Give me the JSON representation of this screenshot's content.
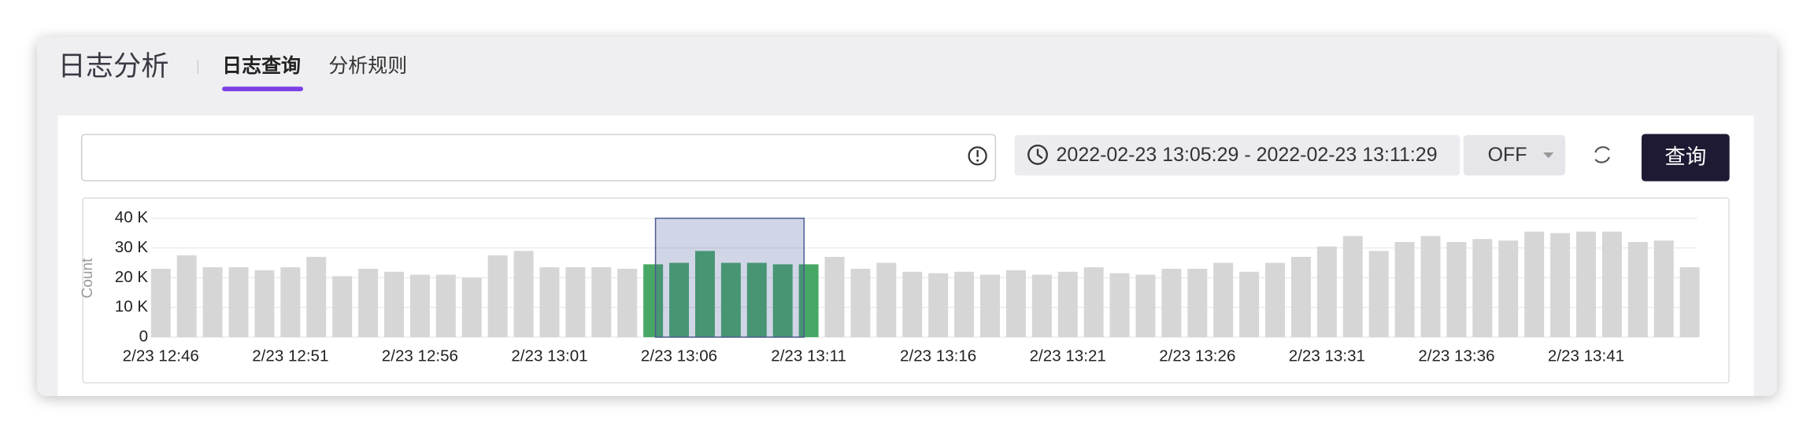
{
  "header": {
    "title": "日志分析",
    "tabs": [
      "日志查询",
      "分析规则"
    ]
  },
  "search": {
    "time_range": "2022-02-23 13:05:29 - 2022-02-23 13:11:29",
    "refresh": "OFF",
    "button": "查询"
  },
  "chart_data": {
    "type": "bar",
    "y_label": "Count",
    "categories": [
      "2/23 12:46",
      null,
      null,
      null,
      null,
      "2/23 12:51",
      null,
      null,
      null,
      null,
      "2/23 12:56",
      null,
      null,
      null,
      null,
      "2/23 13:01",
      null,
      null,
      null,
      null,
      "2/23 13:06",
      null,
      null,
      null,
      null,
      "2/23 13:11",
      null,
      null,
      null,
      null,
      "2/23 13:16",
      null,
      null,
      null,
      null,
      "2/23 13:21",
      null,
      null,
      null,
      null,
      "2/23 13:26",
      null,
      null,
      null,
      null,
      "2/23 13:31",
      null,
      null,
      null,
      null,
      "2/23 13:36",
      null,
      null,
      null,
      null,
      "2/23 13:41",
      null,
      null,
      null,
      null
    ],
    "values": [
      23000,
      27500,
      23500,
      23500,
      22500,
      23500,
      27000,
      20500,
      23000,
      22000,
      21000,
      21000,
      20000,
      27500,
      29000,
      23500,
      23500,
      23500,
      23000,
      24500,
      25000,
      29000,
      25000,
      25000,
      24500,
      24500,
      27000,
      23000,
      25000,
      22000,
      21500,
      22000,
      21000,
      22500,
      21000,
      22000,
      23500,
      21500,
      21000,
      23000,
      23000,
      25000,
      22000,
      25000,
      27000,
      30500,
      34000,
      29000,
      32000,
      34000,
      32000,
      33000,
      32500,
      35500,
      35000,
      35500,
      35500,
      32000,
      32500,
      23500
    ],
    "bar_colors": [
      "#d6d6d6",
      "#d6d6d6",
      "#d6d6d6",
      "#d6d6d6",
      "#d6d6d6",
      "#d6d6d6",
      "#d6d6d6",
      "#d6d6d6",
      "#d6d6d6",
      "#d6d6d6",
      "#d6d6d6",
      "#d6d6d6",
      "#d6d6d6",
      "#d6d6d6",
      "#d6d6d6",
      "#d6d6d6",
      "#d6d6d6",
      "#d6d6d6",
      "#d6d6d6",
      "#47a865",
      "#47a865",
      "#47a865",
      "#47a865",
      "#47a865",
      "#47a865",
      "#47a865",
      "#d6d6d6",
      "#d6d6d6",
      "#d6d6d6",
      "#d6d6d6",
      "#d6d6d6",
      "#d6d6d6",
      "#d6d6d6",
      "#d6d6d6",
      "#d6d6d6",
      "#d6d6d6",
      "#d6d6d6",
      "#d6d6d6",
      "#d6d6d6",
      "#d6d6d6",
      "#d6d6d6",
      "#d6d6d6",
      "#d6d6d6",
      "#d6d6d6",
      "#d6d6d6",
      "#d6d6d6",
      "#d6d6d6",
      "#d6d6d6",
      "#d6d6d6",
      "#d6d6d6",
      "#d6d6d6",
      "#d6d6d6",
      "#d6d6d6",
      "#d6d6d6",
      "#d6d6d6",
      "#d6d6d6",
      "#d6d6d6",
      "#d6d6d6",
      "#d6d6d6",
      "#d6d6d6"
    ],
    "ylim": [
      0,
      40000
    ],
    "yticks": [
      0,
      {
        "value": 10000,
        "label": "10 K"
      },
      {
        "value": 20000,
        "label": "20 K"
      },
      {
        "value": 30000,
        "label": "30 K"
      },
      {
        "value": 40000,
        "label": "40 K"
      }
    ],
    "grid": true
  }
}
